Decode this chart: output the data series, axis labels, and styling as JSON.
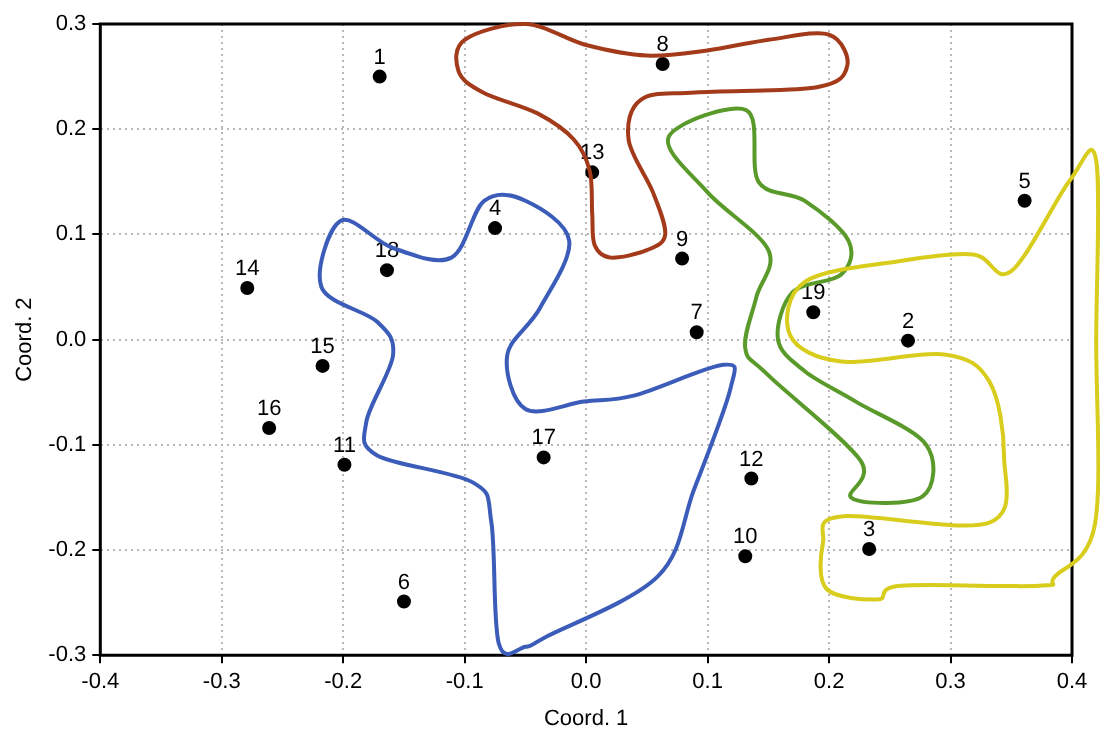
{
  "chart_data": {
    "type": "scatter",
    "xlabel": "Coord. 1",
    "ylabel": "Coord. 2",
    "xlim": [
      -0.4,
      0.4
    ],
    "xticks": [
      -0.4,
      -0.3,
      -0.2,
      -0.1,
      {
        "value": 0,
        "label": "0.0"
      },
      0.1,
      0.2,
      0.3,
      0.4
    ],
    "ylim": [
      -0.3,
      0.3
    ],
    "yticks": [
      -0.3,
      -0.2,
      -0.1,
      {
        "value": 0,
        "label": "0.0"
      },
      0.1,
      0.2,
      0.3
    ],
    "grid": true,
    "legend": false,
    "marker": "circle",
    "series": [
      {
        "color": "#000000",
        "x": [
          -0.17,
          0.265,
          0.233,
          -0.075,
          0.361,
          -0.15,
          0.091,
          0.063,
          0.079,
          0.131,
          -0.199,
          0.136,
          0.005,
          -0.279,
          -0.217,
          -0.261,
          -0.035,
          -0.164,
          0.187
        ],
        "values": [
          0.25,
          -0.001,
          -0.199,
          0.106,
          0.132,
          -0.249,
          0.007,
          0.262,
          0.077,
          -0.206,
          -0.119,
          -0.132,
          0.159,
          0.049,
          -0.025,
          -0.084,
          -0.112,
          0.066,
          0.026
        ]
      }
    ],
    "annotations": [
      {
        "text": "1",
        "x": -0.17,
        "y": 0.25
      },
      {
        "text": "2",
        "x": 0.265,
        "y": -0.001
      },
      {
        "text": "3",
        "x": 0.233,
        "y": -0.199
      },
      {
        "text": "4",
        "x": -0.075,
        "y": 0.106
      },
      {
        "text": "5",
        "x": 0.361,
        "y": 0.132
      },
      {
        "text": "6",
        "x": -0.15,
        "y": -0.249
      },
      {
        "text": "7",
        "x": 0.091,
        "y": 0.007
      },
      {
        "text": "8",
        "x": 0.063,
        "y": 0.262
      },
      {
        "text": "9",
        "x": 0.079,
        "y": 0.077
      },
      {
        "text": "10",
        "x": 0.131,
        "y": -0.206
      },
      {
        "text": "11",
        "x": -0.199,
        "y": -0.119
      },
      {
        "text": "12",
        "x": 0.136,
        "y": -0.132
      },
      {
        "text": "13",
        "x": 0.005,
        "y": 0.159
      },
      {
        "text": "14",
        "x": -0.279,
        "y": 0.049
      },
      {
        "text": "15",
        "x": -0.217,
        "y": -0.025
      },
      {
        "text": "16",
        "x": -0.261,
        "y": -0.084
      },
      {
        "text": "17",
        "x": -0.035,
        "y": -0.112
      },
      {
        "text": "18",
        "x": -0.164,
        "y": 0.066
      },
      {
        "text": "19",
        "x": 0.187,
        "y": 0.026
      }
    ]
  }
}
